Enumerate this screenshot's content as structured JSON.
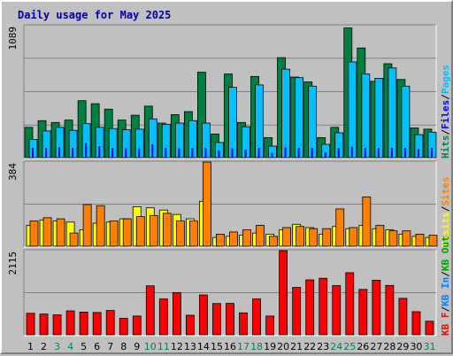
{
  "chart_data": {
    "type": "bar",
    "title": "Daily usage for May 2025",
    "categories": [
      "1",
      "2",
      "3",
      "4",
      "5",
      "6",
      "7",
      "8",
      "9",
      "10",
      "11",
      "12",
      "13",
      "14",
      "15",
      "16",
      "17",
      "18",
      "19",
      "20",
      "21",
      "22",
      "23",
      "24",
      "25",
      "26",
      "27",
      "28",
      "29",
      "30",
      "31"
    ],
    "weekend_days": [
      "3",
      "4",
      "10",
      "11",
      "17",
      "18",
      "24",
      "25",
      "31"
    ],
    "panels": [
      {
        "id": "traffic",
        "ymax_label": "1089",
        "ylim": [
          0,
          1089
        ],
        "legend": [
          {
            "text": "Hits",
            "color": "#00805c"
          },
          {
            "text": "Files",
            "color": "#0000ff"
          },
          {
            "text": "Pages",
            "color": "#00c0ff"
          }
        ],
        "series": [
          {
            "name": "Hits",
            "color": "#008040",
            "values": [
              250,
              305,
              290,
              310,
              470,
              445,
              400,
              310,
              350,
              425,
              285,
              355,
              380,
              705,
              195,
              690,
              290,
              670,
              165,
              825,
              665,
              625,
              165,
              250,
              1070,
              905,
              630,
              775,
              645,
              245,
              235
            ]
          },
          {
            "name": "Files",
            "color": "#00c0ff",
            "values": [
              150,
              220,
              250,
              225,
              280,
              250,
              240,
              230,
              235,
              320,
              275,
              285,
              305,
              285,
              125,
              580,
              255,
              600,
              95,
              730,
              660,
              590,
              110,
              205,
              790,
              690,
              655,
              740,
              590,
              190,
              210
            ]
          },
          {
            "name": "Pages",
            "color": "#0000ff",
            "values": [
              80,
              80,
              85,
              80,
              120,
              95,
              80,
              75,
              75,
              110,
              80,
              75,
              80,
              80,
              60,
              75,
              65,
              80,
              40,
              85,
              80,
              80,
              45,
              80,
              90,
              80,
              80,
              80,
              80,
              70,
              80
            ]
          }
        ]
      },
      {
        "id": "visits",
        "ymax_label": "384",
        "ylim": [
          0,
          384
        ],
        "legend": [
          {
            "text": "Visits",
            "color": "#ffff00"
          },
          {
            "text": "Sites",
            "color": "#ff8000"
          }
        ],
        "series": [
          {
            "name": "Visits",
            "color": "#ffff00",
            "values": [
              95,
              120,
              115,
              110,
              75,
              105,
              110,
              125,
              180,
              175,
              165,
              145,
              125,
              205,
              40,
              45,
              50,
              60,
              55,
              75,
              100,
              85,
              55,
              90,
              80,
              95,
              80,
              75,
              55,
              45,
              40
            ]
          },
          {
            "name": "Sites",
            "color": "#ff8000",
            "values": [
              115,
              130,
              125,
              60,
              190,
              185,
              115,
              125,
              135,
              140,
              150,
              115,
              115,
              384,
              55,
              65,
              75,
              95,
              45,
              85,
              90,
              80,
              80,
              170,
              85,
              225,
              95,
              70,
              70,
              55,
              50
            ]
          }
        ]
      },
      {
        "id": "kbytes",
        "ymax_label": "2115",
        "ylim": [
          0,
          2115
        ],
        "legend": [
          {
            "text": "KB F",
            "color": "#ff0000"
          },
          {
            "text": "KB In",
            "color": "#0080ff"
          },
          {
            "text": "KB Out",
            "color": "#00a000"
          }
        ],
        "series": [
          {
            "name": "KB F",
            "color": "#ff0000",
            "values": [
              540,
              520,
              500,
              600,
              570,
              560,
              610,
              415,
              470,
              1230,
              900,
              1060,
              490,
              1000,
              785,
              790,
              550,
              900,
              470,
              2115,
              1190,
              1380,
              1420,
              1235,
              1560,
              1140,
              1370,
              1240,
              915,
              580,
              340
            ]
          }
        ]
      }
    ]
  }
}
